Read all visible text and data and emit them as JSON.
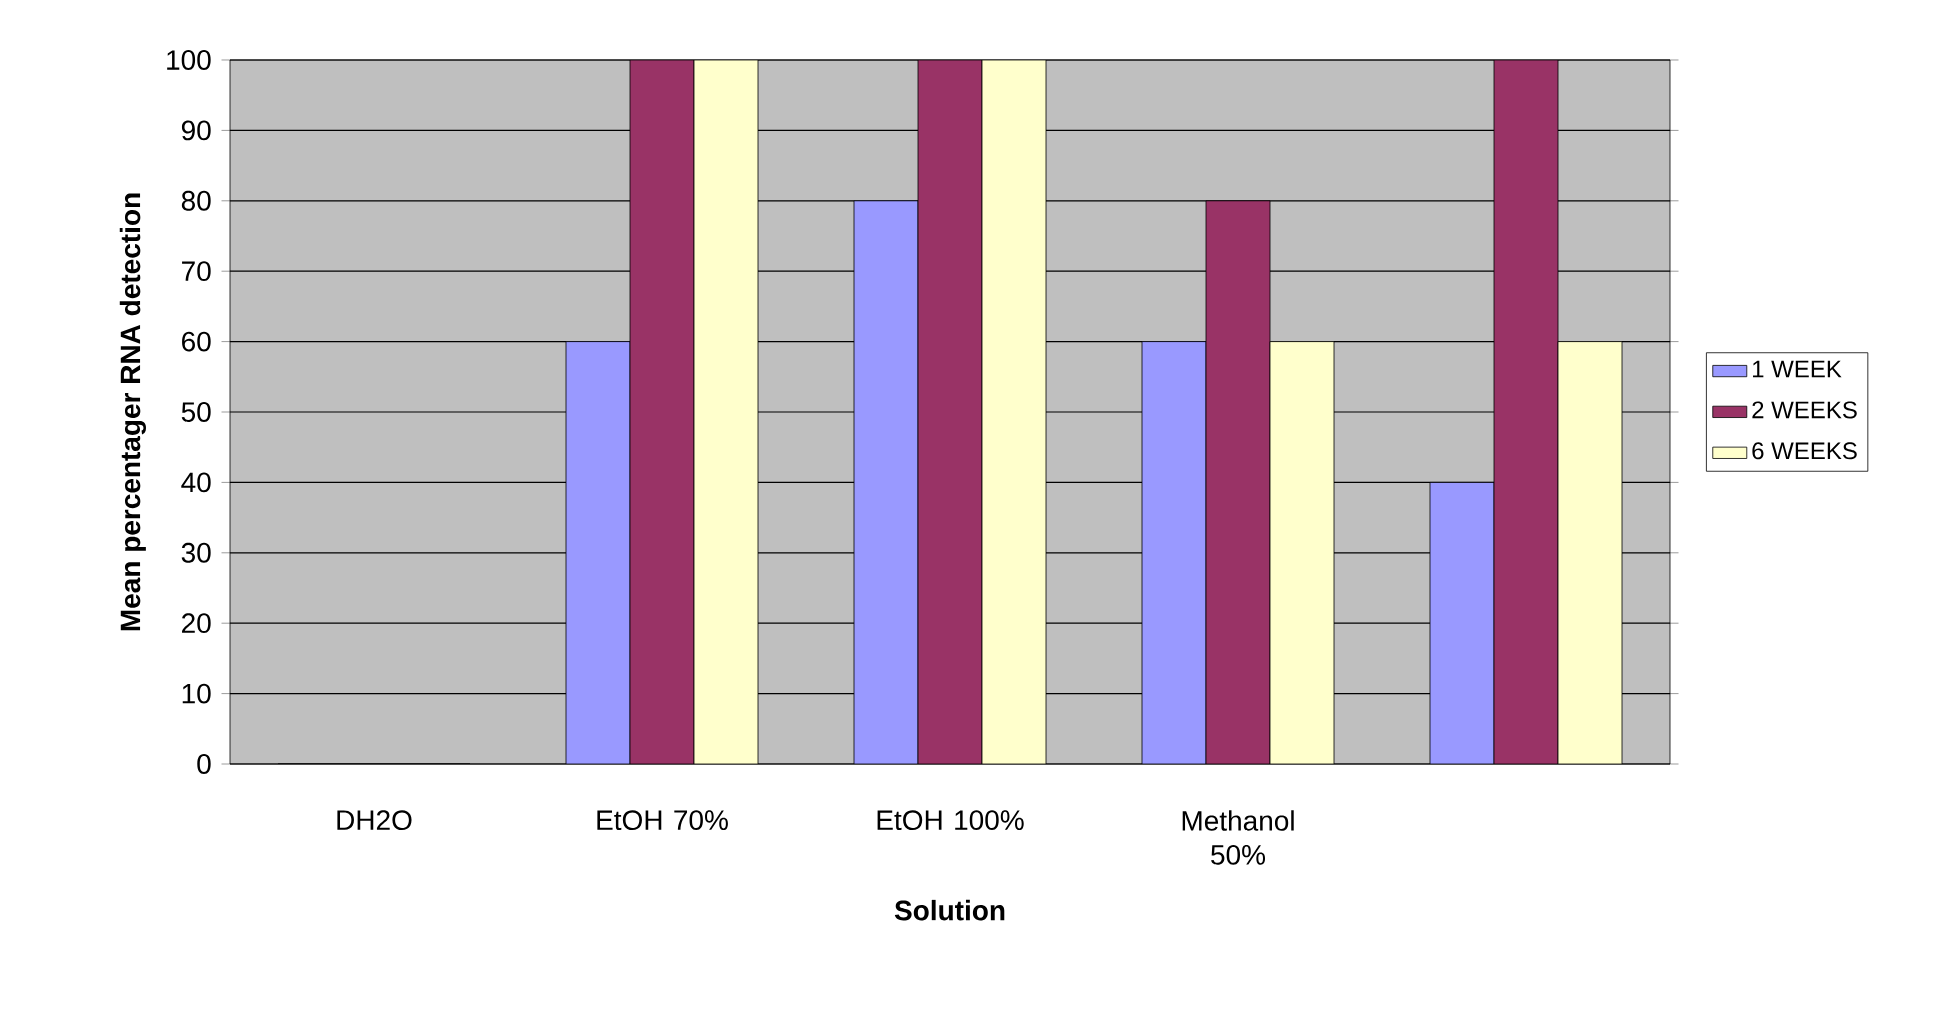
{
  "chart_data": {
    "type": "bar",
    "xlabel": "Solution",
    "ylabel": "Mean percentager RNA detection",
    "categories": [
      "DH2O",
      "EtOH 70%",
      "EtOH 100%",
      "Methanol 50%",
      null
    ],
    "series": [
      {
        "name": "1 WEEK",
        "color": "#9999ff",
        "values": [
          0,
          60,
          80,
          60,
          40
        ]
      },
      {
        "name": "2 WEEKS",
        "color": "#993366",
        "values": [
          0,
          100,
          100,
          80,
          100
        ]
      },
      {
        "name": "6 WEEKS",
        "color": "#ffffcc",
        "values": [
          0,
          100,
          100,
          60,
          60
        ]
      }
    ],
    "ylim": [
      0,
      100
    ],
    "yticks": [
      0,
      10,
      20,
      30,
      40,
      50,
      60,
      70,
      80,
      90,
      100
    ],
    "grid": "y",
    "legend": "right"
  }
}
